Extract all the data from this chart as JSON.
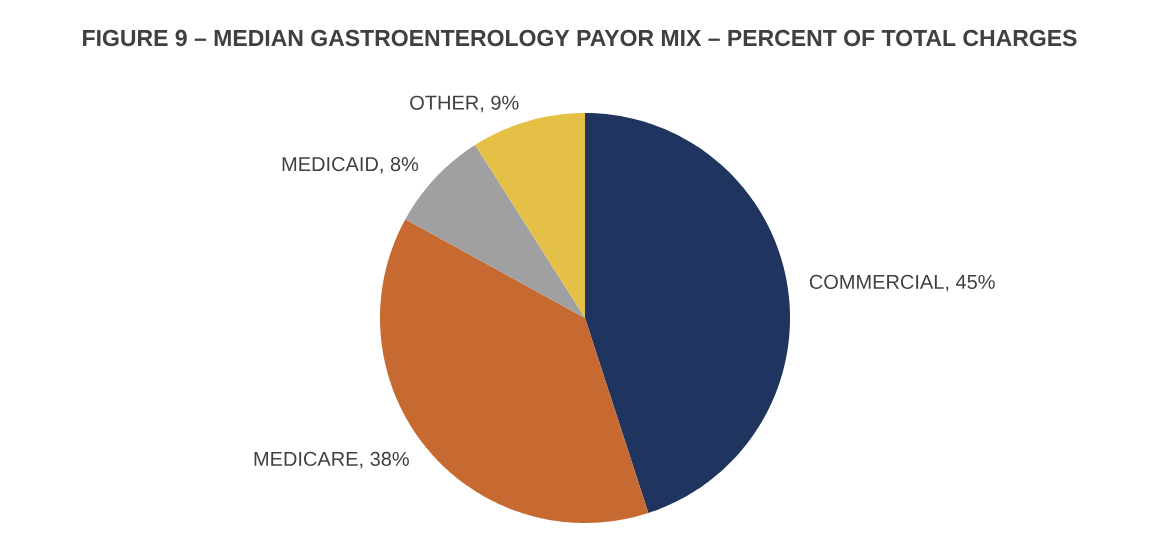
{
  "chart_data": {
    "type": "pie",
    "title": "FIGURE 9 – MEDIAN GASTROENTEROLOGY PAYOR MIX – PERCENT OF TOTAL CHARGES",
    "categories": [
      "COMMERCIAL, 45%",
      "MEDICARE, 38%",
      "MEDICAID, 8%",
      "OTHER, 9%"
    ],
    "values": [
      45,
      38,
      8,
      9
    ],
    "colors": [
      "#1f3560",
      "#c66a32",
      "#a0a0a2",
      "#e4c046"
    ]
  }
}
